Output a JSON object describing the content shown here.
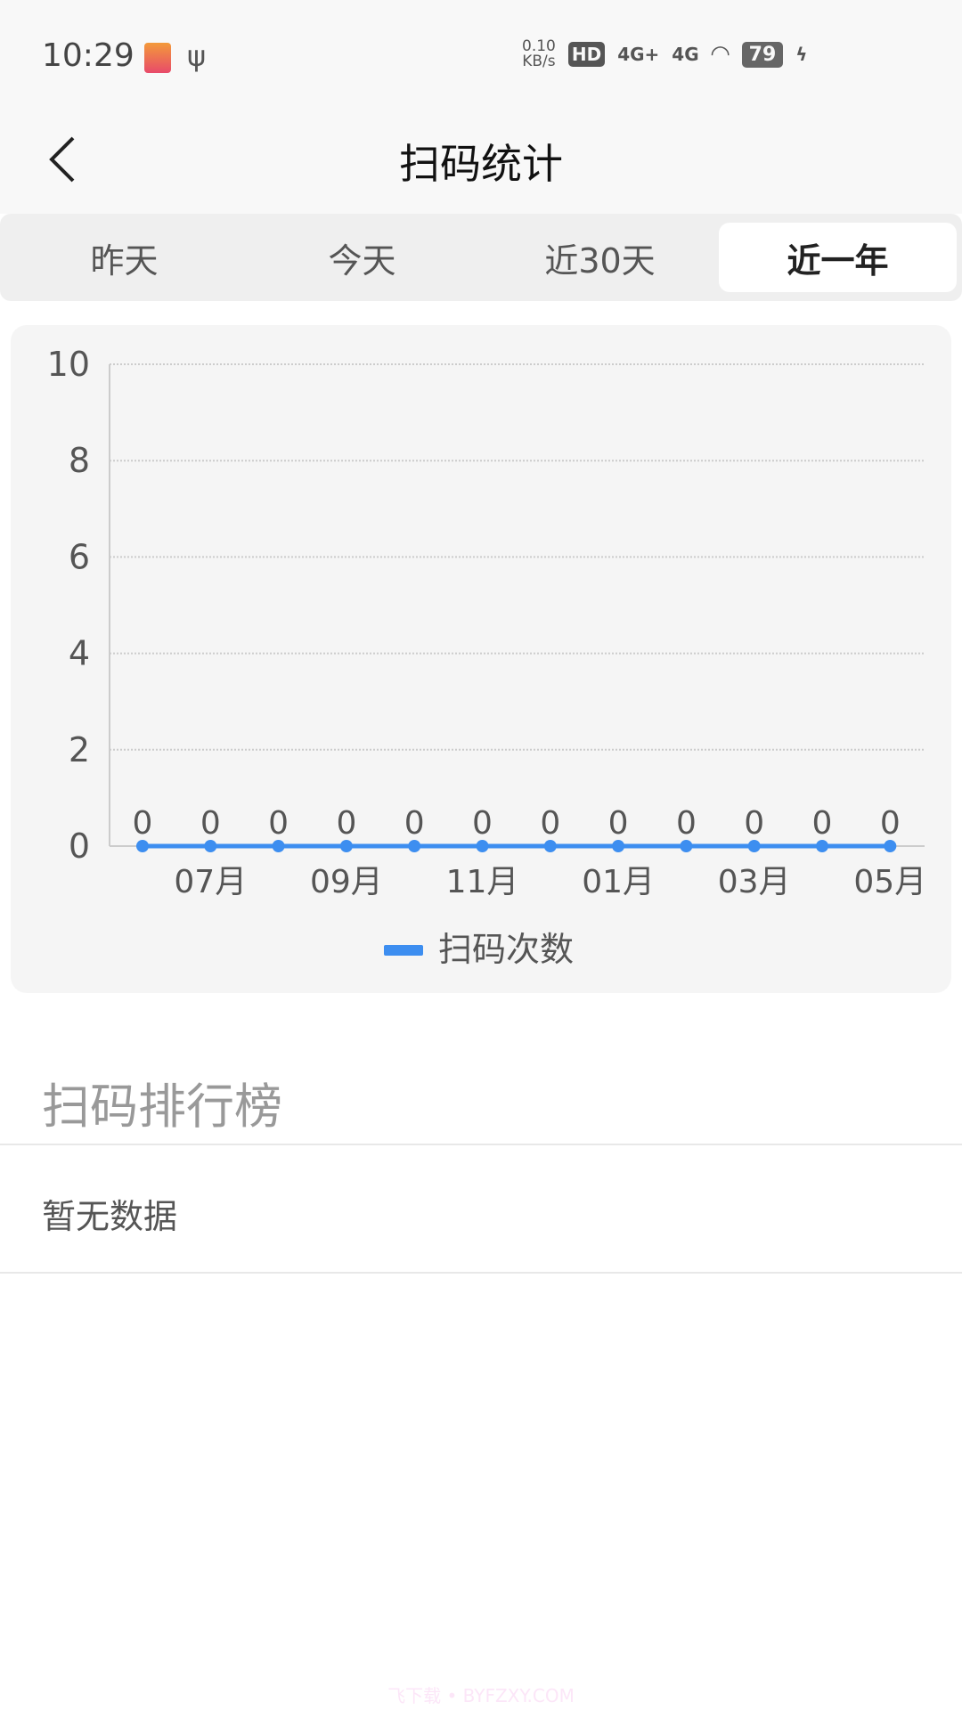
{
  "status_bar": {
    "time": "10:29",
    "net_speed": "0.10",
    "net_unit": "KB/s",
    "hd": "HD",
    "sim1": "4G+",
    "sim2": "4G",
    "battery": "79"
  },
  "header": {
    "title": "扫码统计"
  },
  "tabs": [
    {
      "label": "昨天"
    },
    {
      "label": "今天"
    },
    {
      "label": "近30天"
    },
    {
      "label": "近一年",
      "selected": true
    }
  ],
  "chart_data": {
    "type": "line",
    "x_tick_labels": [
      "07月",
      "09月",
      "11月",
      "01月",
      "03月",
      "05月"
    ],
    "series": [
      {
        "name": "扫码次数",
        "values": [
          0,
          0,
          0,
          0,
          0,
          0,
          0,
          0,
          0,
          0,
          0,
          0
        ],
        "color": "#3d8ef0"
      }
    ],
    "ylim": [
      0,
      10
    ],
    "y_ticks": [
      "0",
      "2",
      "4",
      "6",
      "8",
      "10"
    ],
    "grid": true,
    "legend": "bottom",
    "data_labels": true
  },
  "ranking": {
    "title": "扫码排行榜",
    "empty_text": "暂无数据"
  },
  "watermark": "飞下载 • BYFZXY.COM"
}
